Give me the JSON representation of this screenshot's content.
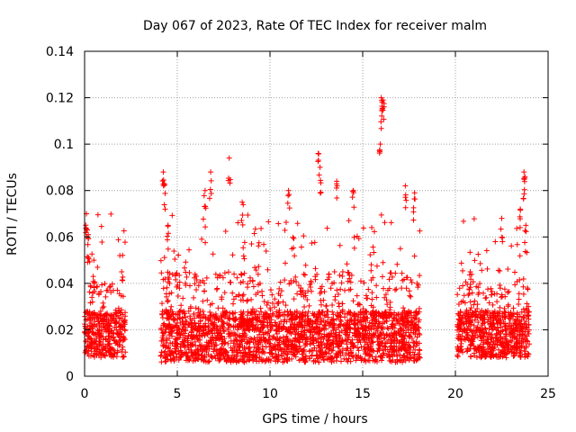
{
  "chart_data": {
    "type": "scatter",
    "title": "Day 067 of 2023, Rate Of TEC Index for receiver malm",
    "xlabel": "GPS time / hours",
    "ylabel": "ROTI / TECUs",
    "xlim": [
      0,
      25
    ],
    "ylim": [
      0,
      0.14
    ],
    "xticks": [
      0,
      5,
      10,
      15,
      20,
      25
    ],
    "yticks": [
      0,
      0.02,
      0.04,
      0.06,
      0.08,
      0.1,
      0.12,
      0.14
    ],
    "xtick_labels": [
      "0",
      "5",
      "10",
      "15",
      "20",
      "25"
    ],
    "ytick_labels": [
      "0",
      "0.02",
      "0.04",
      "0.06",
      "0.08",
      "0.1",
      "0.12",
      "0.14"
    ],
    "grid": true,
    "marker": "+",
    "marker_color": "#ff0000",
    "data_segments": [
      {
        "start": 0.0,
        "end": 2.2,
        "base_min": 0.008,
        "base_max": 0.04
      },
      {
        "start": 4.1,
        "end": 18.1,
        "base_min": 0.006,
        "base_max": 0.045
      },
      {
        "start": 20.1,
        "end": 24.0,
        "base_min": 0.008,
        "base_max": 0.04
      }
    ],
    "highlights": [
      {
        "x": 0.1,
        "y": 0.07
      },
      {
        "x": 0.15,
        "y": 0.063
      },
      {
        "x": 0.2,
        "y": 0.061
      },
      {
        "x": 0.5,
        "y": 0.05
      },
      {
        "x": 2.0,
        "y": 0.045
      },
      {
        "x": 4.25,
        "y": 0.088
      },
      {
        "x": 4.3,
        "y": 0.083
      },
      {
        "x": 4.5,
        "y": 0.065
      },
      {
        "x": 6.5,
        "y": 0.08
      },
      {
        "x": 6.8,
        "y": 0.088
      },
      {
        "x": 7.8,
        "y": 0.094
      },
      {
        "x": 8.5,
        "y": 0.075
      },
      {
        "x": 11.0,
        "y": 0.08
      },
      {
        "x": 12.6,
        "y": 0.096
      },
      {
        "x": 12.7,
        "y": 0.09
      },
      {
        "x": 13.6,
        "y": 0.084
      },
      {
        "x": 14.5,
        "y": 0.08
      },
      {
        "x": 16.0,
        "y": 0.12
      },
      {
        "x": 16.05,
        "y": 0.118
      },
      {
        "x": 16.1,
        "y": 0.119
      },
      {
        "x": 15.95,
        "y": 0.1
      },
      {
        "x": 17.3,
        "y": 0.082
      },
      {
        "x": 17.8,
        "y": 0.079
      },
      {
        "x": 20.8,
        "y": 0.045
      },
      {
        "x": 22.5,
        "y": 0.068
      },
      {
        "x": 23.5,
        "y": 0.072
      },
      {
        "x": 23.7,
        "y": 0.088
      },
      {
        "x": 23.75,
        "y": 0.086
      },
      {
        "x": 23.8,
        "y": 0.065
      }
    ]
  }
}
